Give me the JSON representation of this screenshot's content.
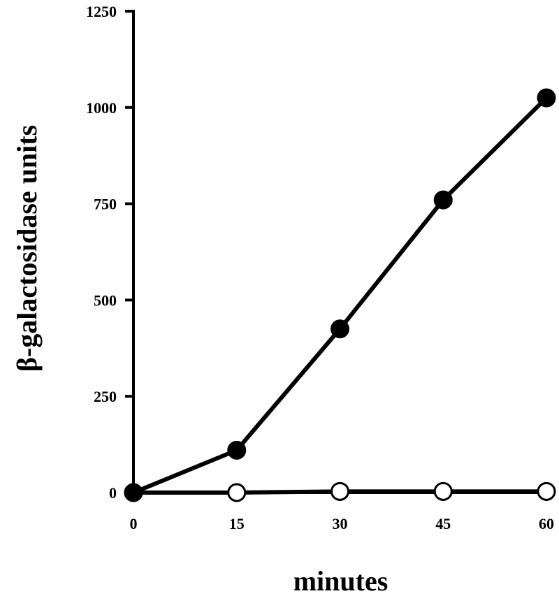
{
  "chart_data": {
    "type": "line",
    "xlabel": "minutes",
    "ylabel": "β-galactosidase units",
    "x": [
      0,
      15,
      30,
      45,
      60
    ],
    "xlim": [
      0,
      60
    ],
    "ylim": [
      0,
      1250
    ],
    "xticks": [
      0,
      15,
      30,
      45,
      60
    ],
    "yticks": [
      0,
      250,
      500,
      750,
      1000,
      1250
    ],
    "grid": false,
    "series": [
      {
        "marker": "filled-circle",
        "color": "#000000",
        "values": [
          0,
          110,
          425,
          760,
          1025
        ]
      },
      {
        "marker": "open-circle",
        "color": "#000000",
        "values": [
          0,
          0,
          3,
          3,
          3
        ]
      }
    ]
  }
}
